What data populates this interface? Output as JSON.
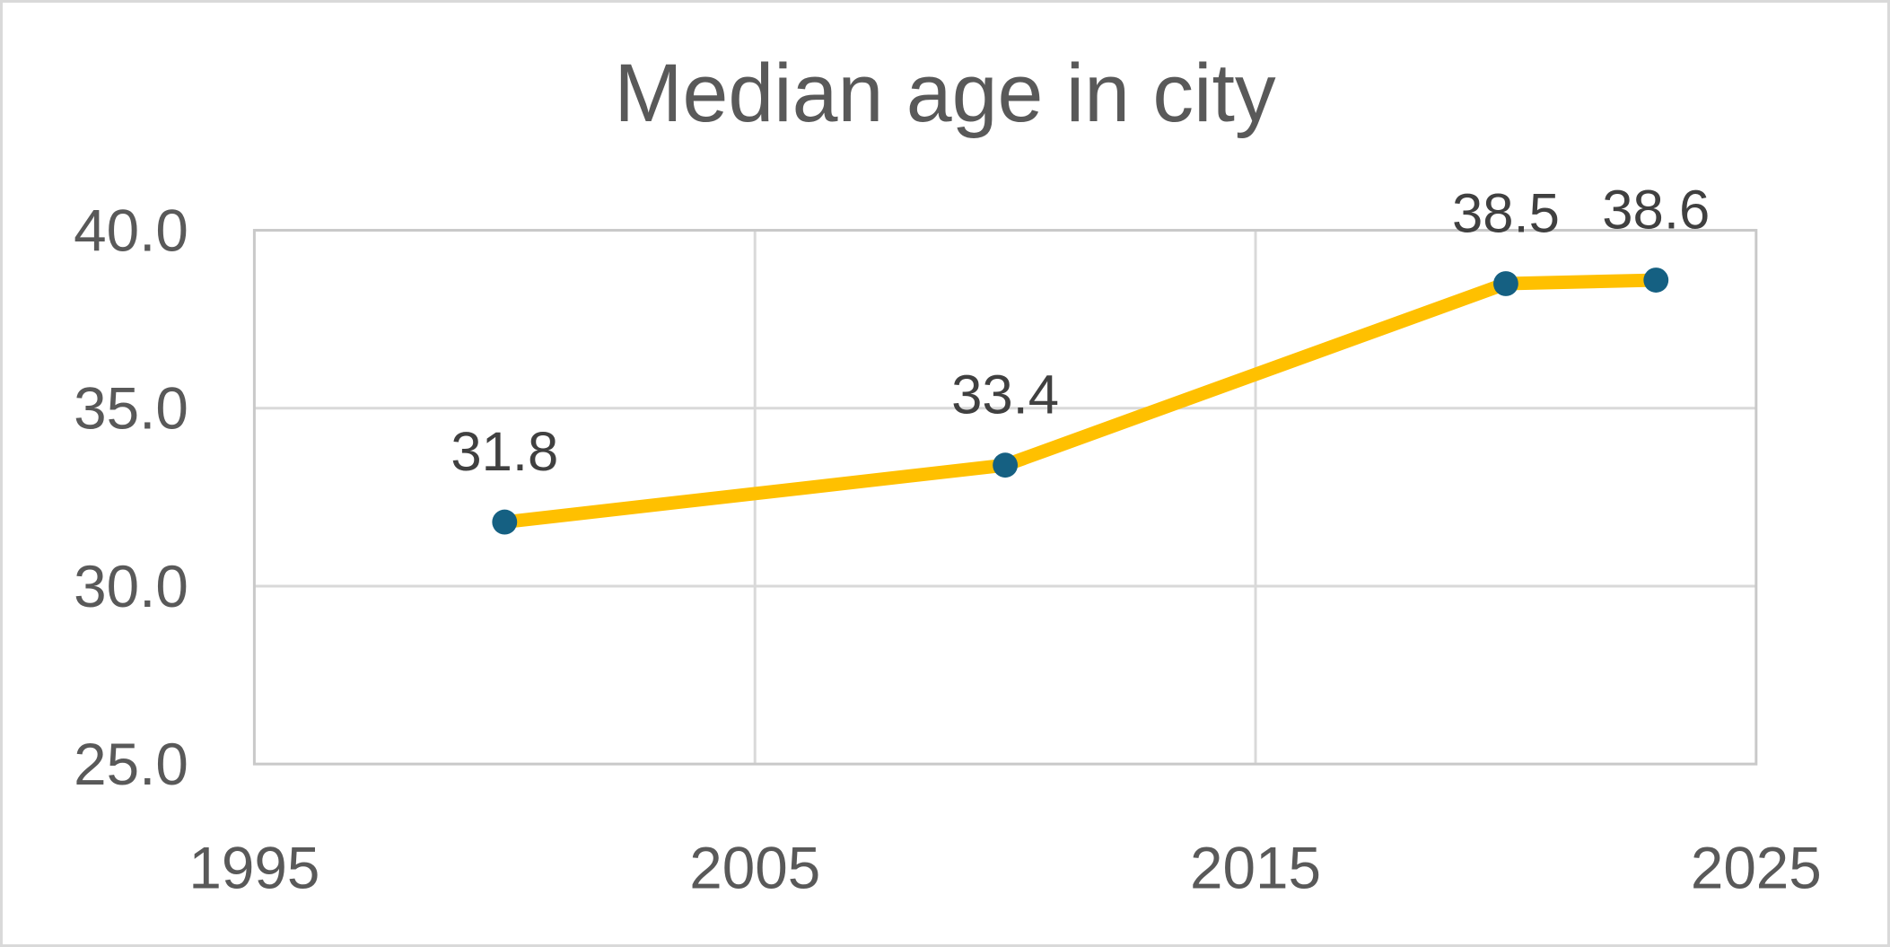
{
  "chart_data": {
    "type": "line",
    "title": "Median age in city",
    "x": [
      2000,
      2010,
      2020,
      2023
    ],
    "values": [
      31.8,
      33.4,
      38.5,
      38.6
    ],
    "point_labels": [
      "31.8",
      "33.4",
      "38.5",
      "38.6"
    ],
    "xlim": [
      1995,
      2025
    ],
    "ylim": [
      25.0,
      40.0
    ],
    "x_ticks": [
      {
        "value": 1995,
        "label": "1995"
      },
      {
        "value": 2005,
        "label": "2005"
      },
      {
        "value": 2015,
        "label": "2015"
      },
      {
        "value": 2025,
        "label": "2025"
      }
    ],
    "y_ticks": [
      {
        "value": 40,
        "label": "40.0"
      },
      {
        "value": 35,
        "label": "35.0"
      },
      {
        "value": 30,
        "label": "30.0"
      },
      {
        "value": 25,
        "label": "25.0"
      }
    ],
    "x_gridlines": [
      2005,
      2015
    ],
    "y_gridlines": [
      30,
      35,
      40
    ],
    "grid": true,
    "legend": "none",
    "colors": {
      "line": "#FFC000",
      "marker": "#156082",
      "title": "#595959",
      "axis_labels": "#595959",
      "data_labels": "#404040",
      "gridline": "#D9D9D9",
      "plot_border": "#C9C9C9",
      "canvas_border": "#D9D9D9",
      "background": "#FFFFFF"
    }
  }
}
